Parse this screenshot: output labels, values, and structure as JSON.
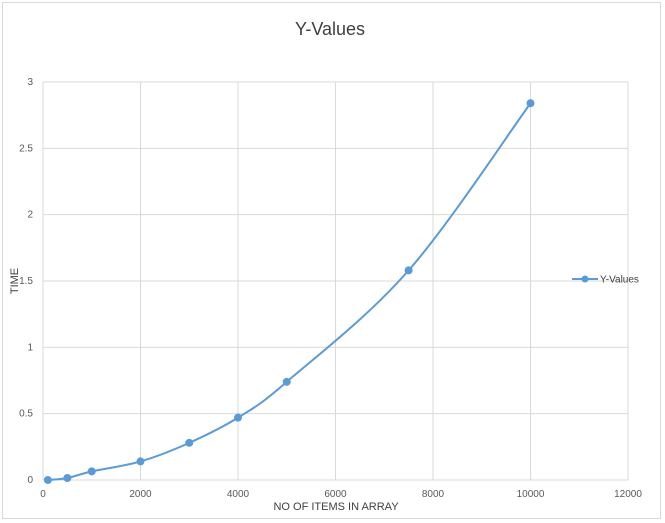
{
  "chart_data": {
    "type": "scatter",
    "title": "Y-Values",
    "xlabel": "NO OF ITEMS IN ARRAY",
    "ylabel": "TIME",
    "xlim": [
      0,
      12000
    ],
    "ylim": [
      0,
      3
    ],
    "x_ticks": [
      0,
      2000,
      4000,
      6000,
      8000,
      10000,
      12000
    ],
    "y_ticks": [
      0,
      0.5,
      1,
      1.5,
      2,
      2.5,
      3
    ],
    "grid": true,
    "smooth_line": true,
    "legend_position": "right",
    "series": [
      {
        "name": "Y-Values",
        "color": "#5b9bd5",
        "points": [
          {
            "x": 100,
            "y": 0.0
          },
          {
            "x": 500,
            "y": 0.015
          },
          {
            "x": 1000,
            "y": 0.065
          },
          {
            "x": 2000,
            "y": 0.14
          },
          {
            "x": 3000,
            "y": 0.28
          },
          {
            "x": 4000,
            "y": 0.47
          },
          {
            "x": 5000,
            "y": 0.74
          },
          {
            "x": 7500,
            "y": 1.58
          },
          {
            "x": 10000,
            "y": 2.84
          }
        ]
      }
    ]
  }
}
